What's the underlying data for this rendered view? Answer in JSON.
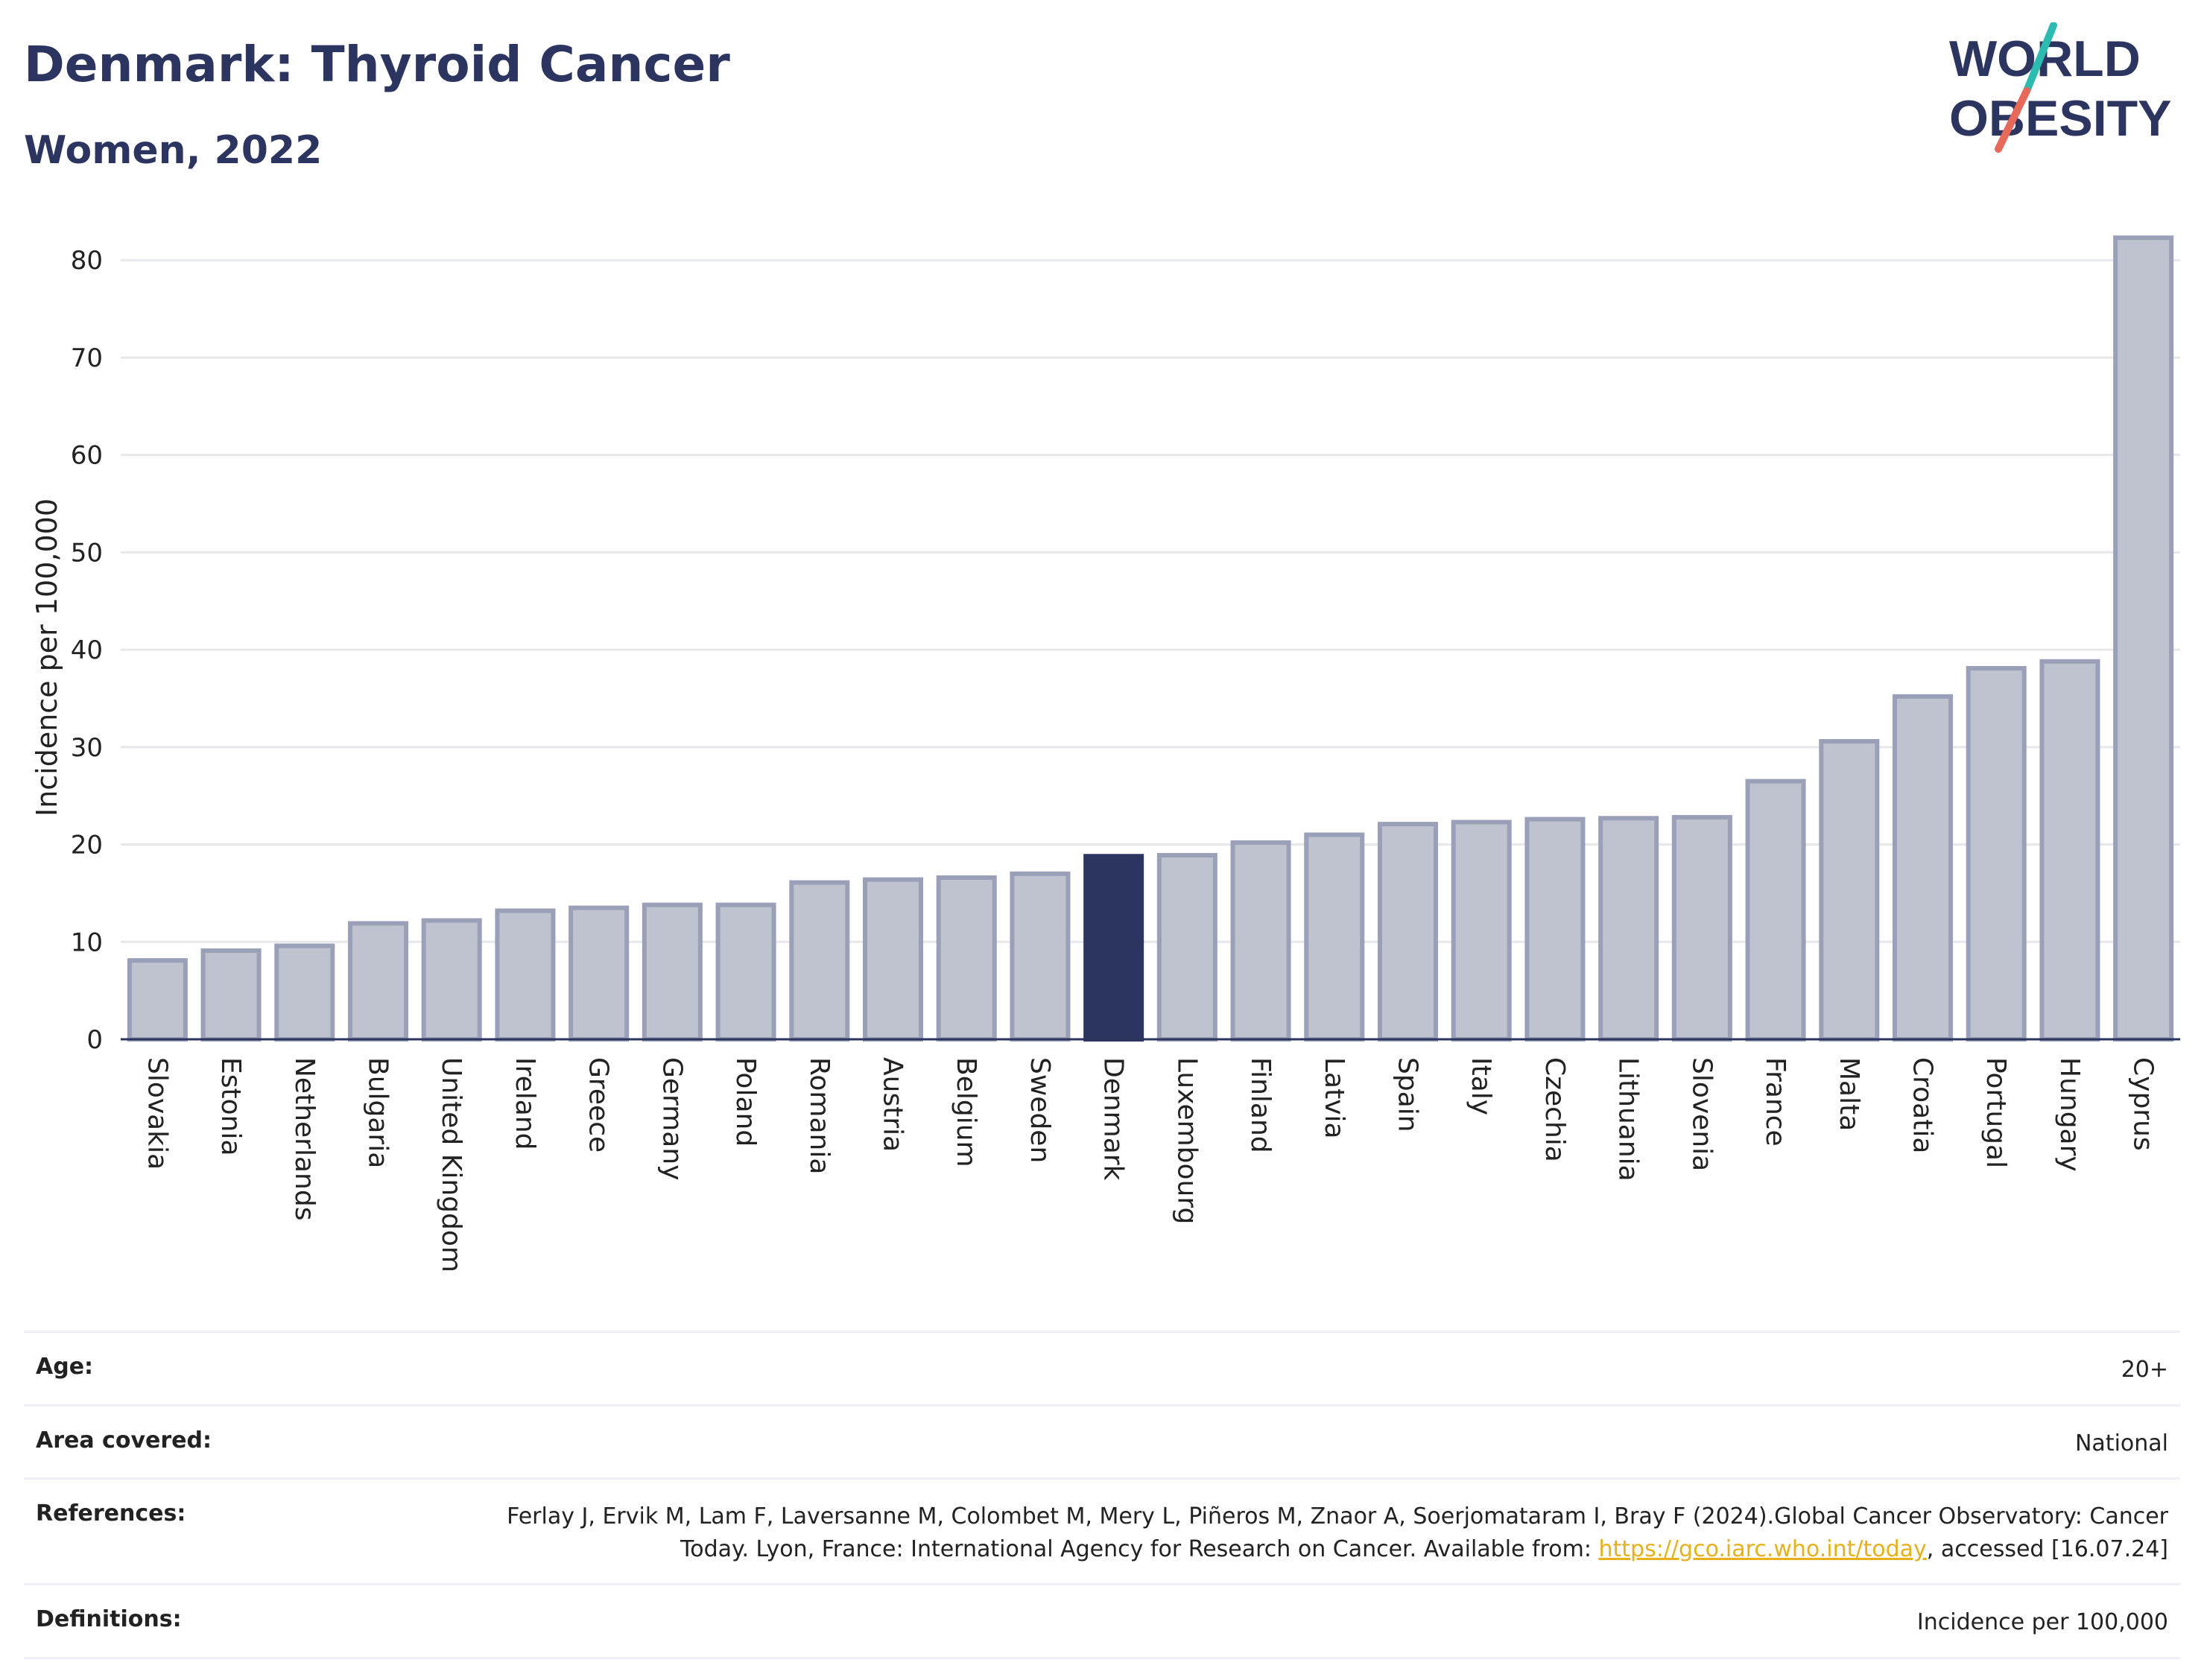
{
  "header": {
    "title": "Denmark: Thyroid Cancer",
    "subtitle": "Women, 2022"
  },
  "logo": {
    "line1": "WORLD",
    "line2": "OBESITY",
    "colors": {
      "text": "#2b3560",
      "slash_teal": "#2bbbb0",
      "slash_red": "#e8685a"
    }
  },
  "colors": {
    "bar_default": "#bfc2cf",
    "bar_stroke": "#9aa0b8",
    "bar_highlight": "#2b3560",
    "grid": "#e6e8ee",
    "axis": "#2b3560"
  },
  "chart_data": {
    "type": "bar",
    "ylabel": "Incidence per 100,000",
    "ylim": [
      0,
      83
    ],
    "yticks": [
      0,
      10,
      20,
      30,
      40,
      50,
      60,
      70,
      80
    ],
    "grid": true,
    "highlight": "Denmark",
    "categories": [
      "Slovakia",
      "Estonia",
      "Netherlands",
      "Bulgaria",
      "United Kingdom",
      "Ireland",
      "Greece",
      "Germany",
      "Poland",
      "Romania",
      "Austria",
      "Belgium",
      "Sweden",
      "Denmark",
      "Luxembourg",
      "Finland",
      "Latvia",
      "Spain",
      "Italy",
      "Czechia",
      "Lithuania",
      "Slovenia",
      "France",
      "Malta",
      "Croatia",
      "Portugal",
      "Hungary",
      "Cyprus"
    ],
    "values": [
      8.1,
      9.1,
      9.6,
      11.9,
      12.2,
      13.2,
      13.5,
      13.8,
      13.8,
      16.1,
      16.4,
      16.6,
      17.0,
      18.8,
      18.9,
      20.2,
      21.0,
      22.1,
      22.3,
      22.6,
      22.7,
      22.8,
      26.5,
      30.6,
      35.2,
      38.1,
      38.8,
      82.3
    ]
  },
  "meta": {
    "age_label": "Age:",
    "age_value": "20+",
    "area_label": "Area covered:",
    "area_value": "National",
    "references_label": "References:",
    "references_text": "Ferlay J, Ervik M, Lam F, Laversanne M, Colombet M, Mery L, Piñeros M, Znaor A, Soerjomataram I, Bray F (2024).Global Cancer Observatory: Cancer Today. Lyon, France: International Agency for Research on Cancer. Available from: ",
    "references_link": "https://gco.iarc.who.int/today",
    "references_tail": ", accessed [16.07.24]",
    "definitions_label": "Definitions:",
    "definitions_value": "Incidence per 100,000"
  }
}
